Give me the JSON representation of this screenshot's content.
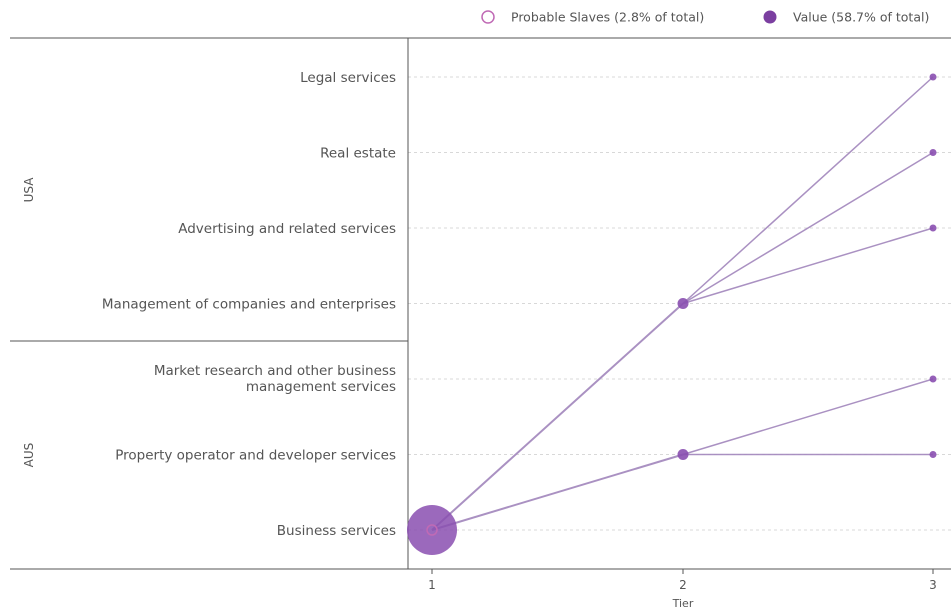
{
  "chart_data": {
    "type": "scatter",
    "xlabel": "Tier",
    "x_ticks": [
      "1",
      "2",
      "3"
    ],
    "groups": [
      {
        "name": "USA",
        "categories": [
          "Legal services",
          "Real estate",
          "Advertising and related services",
          "Management of companies and enterprises"
        ]
      },
      {
        "name": "AUS",
        "categories": [
          "Market research and other business management services",
          "Property operator and developer services",
          "Business services"
        ]
      }
    ],
    "category_order": [
      "Legal services",
      "Real estate",
      "Advertising and related services",
      "Management of companies and enterprises",
      "Market research and other business management services",
      "Property operator and developer services",
      "Business services"
    ],
    "nodes": [
      {
        "id": "business",
        "tier": 1,
        "category": "Business services",
        "value_size": 1.0
      },
      {
        "id": "mgmt",
        "tier": 2,
        "category": "Management of companies and enterprises",
        "value_size": 0.2
      },
      {
        "id": "property2",
        "tier": 2,
        "category": "Property operator and developer services",
        "value_size": 0.2
      },
      {
        "id": "legal",
        "tier": 3,
        "category": "Legal services",
        "value_size": 0.1
      },
      {
        "id": "realestate",
        "tier": 3,
        "category": "Real estate",
        "value_size": 0.1
      },
      {
        "id": "advertising",
        "tier": 3,
        "category": "Advertising and related services",
        "value_size": 0.1
      },
      {
        "id": "market",
        "tier": 3,
        "category": "Market research and other business management services",
        "value_size": 0.1
      },
      {
        "id": "property3",
        "tier": 3,
        "category": "Property operator and developer services",
        "value_size": 0.1
      }
    ],
    "links": [
      {
        "source": "business",
        "target": "mgmt"
      },
      {
        "source": "business",
        "target": "property2"
      },
      {
        "source": "mgmt",
        "target": "legal"
      },
      {
        "source": "mgmt",
        "target": "realestate"
      },
      {
        "source": "mgmt",
        "target": "advertising"
      },
      {
        "source": "property2",
        "target": "market"
      },
      {
        "source": "property2",
        "target": "property3"
      }
    ],
    "legend": {
      "placement": "top-right",
      "items": [
        {
          "label": "Probable Slaves (2.8% of total)",
          "marker": "hollow-circle",
          "color": "#c06ab5"
        },
        {
          "label": "Value (58.7% of total)",
          "marker": "filled-circle",
          "color": "#7b3fa0"
        }
      ]
    },
    "colors": {
      "node": "#8a4fb0",
      "link": "#a58bbf",
      "hollow": "#c06ab5",
      "text": "#555555"
    },
    "grid": true
  }
}
